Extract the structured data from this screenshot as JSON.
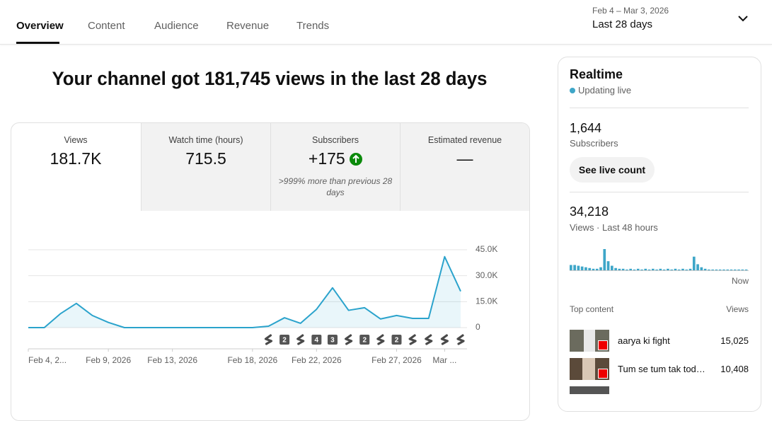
{
  "tabs": [
    "Overview",
    "Content",
    "Audience",
    "Revenue",
    "Trends"
  ],
  "date_range": {
    "dates": "Feb 4 – Mar 3, 2026",
    "period": "Last 28 days"
  },
  "headline": "Your channel got 181,745 views in the last 28 days",
  "metrics": [
    {
      "label": "Views",
      "value": "181.7K"
    },
    {
      "label": "Watch time (hours)",
      "value": "715.5"
    },
    {
      "label": "Subscribers",
      "value": "+175",
      "note": ">999% more than previous 28 days"
    },
    {
      "label": "Estimated revenue",
      "value": "—"
    }
  ],
  "chart_data": [
    {
      "type": "line",
      "color": "#2ba3cc",
      "categories": [
        "Feb 4, 2...",
        null,
        null,
        null,
        null,
        "Feb 9, 2026",
        null,
        null,
        null,
        "Feb 13, 2026",
        null,
        null,
        null,
        null,
        "Feb 18, 2026",
        null,
        null,
        null,
        "Feb 22, 2026",
        null,
        null,
        null,
        null,
        "Feb 27, 2026",
        null,
        null,
        "Mar ...",
        null
      ],
      "values": [
        0,
        0,
        8000,
        14000,
        7000,
        3000,
        0,
        0,
        0,
        0,
        0,
        0,
        0,
        0,
        0,
        800,
        5700,
        2500,
        10600,
        23000,
        10000,
        11500,
        5000,
        7000,
        5300,
        5300,
        41000,
        21000
      ],
      "upload_counts": [
        null,
        null,
        null,
        null,
        null,
        null,
        null,
        null,
        null,
        null,
        null,
        null,
        null,
        null,
        null,
        1,
        2,
        1,
        4,
        3,
        1,
        2,
        1,
        2,
        1,
        1,
        1,
        1
      ],
      "ylim": [
        0,
        45000
      ],
      "yticks": [
        0,
        {
          "value": 15000,
          "label": "15.0K"
        },
        {
          "value": 30000,
          "label": "30.0K"
        },
        {
          "value": 45000,
          "label": "45.0K"
        }
      ],
      "grid": true
    },
    {
      "type": "bar",
      "color": "#3ea6c8",
      "categories": [
        null,
        null,
        null,
        null,
        null,
        null,
        null,
        null,
        null,
        null,
        null,
        null,
        null,
        null,
        null,
        null,
        null,
        null,
        null,
        null,
        null,
        null,
        null,
        null,
        null,
        null,
        null,
        null,
        null,
        null,
        null,
        null,
        null,
        null,
        null,
        null,
        null,
        null,
        null,
        null,
        null,
        null,
        null,
        null,
        null,
        null,
        null,
        "Now"
      ],
      "values": [
        1470,
        1470,
        1260,
        1050,
        840,
        630,
        420,
        420,
        840,
        5880,
        2520,
        1260,
        630,
        420,
        420,
        210,
        420,
        210,
        420,
        210,
        420,
        210,
        420,
        210,
        420,
        210,
        420,
        210,
        420,
        210,
        420,
        210,
        420,
        3780,
        1680,
        840,
        420,
        210,
        210,
        210,
        210,
        210,
        210,
        210,
        210,
        210,
        210,
        210
      ]
    }
  ],
  "realtime": {
    "title": "Realtime",
    "status": "Updating live",
    "subscribers": {
      "value": "1,644",
      "label": "Subscribers"
    },
    "button": "See live count",
    "views": {
      "value": "34,218",
      "label": "Views · Last 48 hours"
    },
    "top_content": {
      "title": "Top content",
      "column": "Views",
      "rows": [
        {
          "title": "aarya ki fight",
          "views": "15,025"
        },
        {
          "title": "Tum se tum tak tod…",
          "views": "10,408"
        }
      ]
    }
  }
}
